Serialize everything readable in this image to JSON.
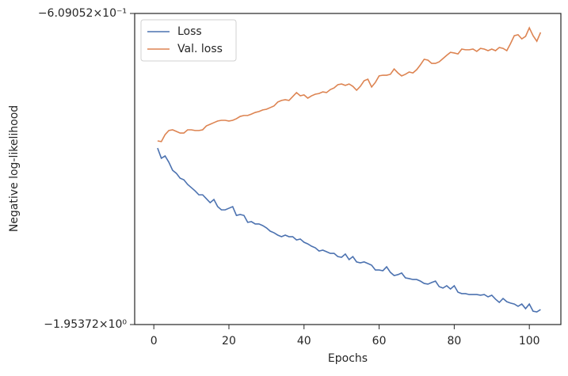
{
  "chart_data": {
    "type": "line",
    "xlabel": "Epochs",
    "ylabel": "Negative log-likelihood",
    "x": [
      1,
      2,
      3,
      4,
      5,
      6,
      7,
      8,
      9,
      10,
      11,
      12,
      13,
      14,
      15,
      16,
      17,
      18,
      19,
      20,
      21,
      22,
      23,
      24,
      25,
      26,
      27,
      28,
      29,
      30,
      31,
      32,
      33,
      34,
      35,
      36,
      37,
      38,
      39,
      40,
      41,
      42,
      43,
      44,
      45,
      46,
      47,
      48,
      49,
      50,
      51,
      52,
      53,
      54,
      55,
      56,
      57,
      58,
      59,
      60,
      61,
      62,
      63,
      64,
      65,
      66,
      67,
      68,
      69,
      70,
      71,
      72,
      73,
      74,
      75,
      76,
      77,
      78,
      79,
      80,
      81,
      82,
      83,
      84,
      85,
      86,
      87,
      88,
      89,
      90,
      91,
      92,
      93,
      94,
      95,
      96,
      97,
      98,
      99,
      100,
      101,
      102,
      103
    ],
    "series": [
      {
        "name": "Loss",
        "color": "#4c72b0",
        "values": [
          -1.191,
          -1.235,
          -1.225,
          -1.252,
          -1.287,
          -1.3,
          -1.321,
          -1.328,
          -1.348,
          -1.362,
          -1.376,
          -1.393,
          -1.393,
          -1.41,
          -1.427,
          -1.413,
          -1.444,
          -1.458,
          -1.458,
          -1.451,
          -1.444,
          -1.482,
          -1.478,
          -1.482,
          -1.512,
          -1.509,
          -1.519,
          -1.519,
          -1.526,
          -1.536,
          -1.55,
          -1.557,
          -1.567,
          -1.574,
          -1.567,
          -1.574,
          -1.574,
          -1.588,
          -1.584,
          -1.598,
          -1.605,
          -1.615,
          -1.622,
          -1.636,
          -1.632,
          -1.639,
          -1.646,
          -1.646,
          -1.66,
          -1.663,
          -1.649,
          -1.673,
          -1.66,
          -1.683,
          -1.687,
          -1.683,
          -1.69,
          -1.697,
          -1.718,
          -1.718,
          -1.721,
          -1.704,
          -1.728,
          -1.742,
          -1.738,
          -1.731,
          -1.752,
          -1.755,
          -1.759,
          -1.759,
          -1.766,
          -1.776,
          -1.779,
          -1.772,
          -1.766,
          -1.79,
          -1.796,
          -1.786,
          -1.8,
          -1.786,
          -1.814,
          -1.82,
          -1.82,
          -1.824,
          -1.824,
          -1.824,
          -1.827,
          -1.824,
          -1.834,
          -1.827,
          -1.844,
          -1.858,
          -1.841,
          -1.855,
          -1.861,
          -1.865,
          -1.875,
          -1.865,
          -1.885,
          -1.865,
          -1.896,
          -1.899,
          -1.889
        ]
      },
      {
        "name": "Val. loss",
        "color": "#dd8452",
        "values": [
          -1.16,
          -1.163,
          -1.133,
          -1.115,
          -1.112,
          -1.119,
          -1.126,
          -1.126,
          -1.112,
          -1.112,
          -1.115,
          -1.115,
          -1.112,
          -1.095,
          -1.088,
          -1.081,
          -1.074,
          -1.071,
          -1.071,
          -1.074,
          -1.071,
          -1.064,
          -1.054,
          -1.05,
          -1.05,
          -1.044,
          -1.037,
          -1.033,
          -1.026,
          -1.023,
          -1.016,
          -1.009,
          -0.992,
          -0.985,
          -0.982,
          -0.985,
          -0.968,
          -0.951,
          -0.965,
          -0.961,
          -0.975,
          -0.965,
          -0.958,
          -0.955,
          -0.948,
          -0.951,
          -0.938,
          -0.931,
          -0.917,
          -0.914,
          -0.92,
          -0.914,
          -0.924,
          -0.941,
          -0.924,
          -0.9,
          -0.893,
          -0.927,
          -0.907,
          -0.879,
          -0.876,
          -0.876,
          -0.872,
          -0.849,
          -0.866,
          -0.879,
          -0.872,
          -0.862,
          -0.866,
          -0.852,
          -0.831,
          -0.807,
          -0.811,
          -0.825,
          -0.825,
          -0.818,
          -0.804,
          -0.79,
          -0.777,
          -0.78,
          -0.784,
          -0.763,
          -0.766,
          -0.766,
          -0.763,
          -0.773,
          -0.76,
          -0.763,
          -0.77,
          -0.763,
          -0.77,
          -0.756,
          -0.76,
          -0.77,
          -0.739,
          -0.705,
          -0.701,
          -0.719,
          -0.708,
          -0.671,
          -0.705,
          -0.729,
          -0.691
        ]
      }
    ],
    "xlim": [
      -5.1,
      108.4
    ],
    "xticks": [
      0,
      20,
      40,
      60,
      80,
      100
    ],
    "ylim": [
      -1.95372,
      -0.609052
    ],
    "yticks": [
      {
        "value": -1.95372,
        "label": "−1.95372×10⁰"
      },
      {
        "value": -0.609052,
        "label": "−6.09052×10⁻¹"
      }
    ],
    "legend": "upper left",
    "grid": false
  }
}
